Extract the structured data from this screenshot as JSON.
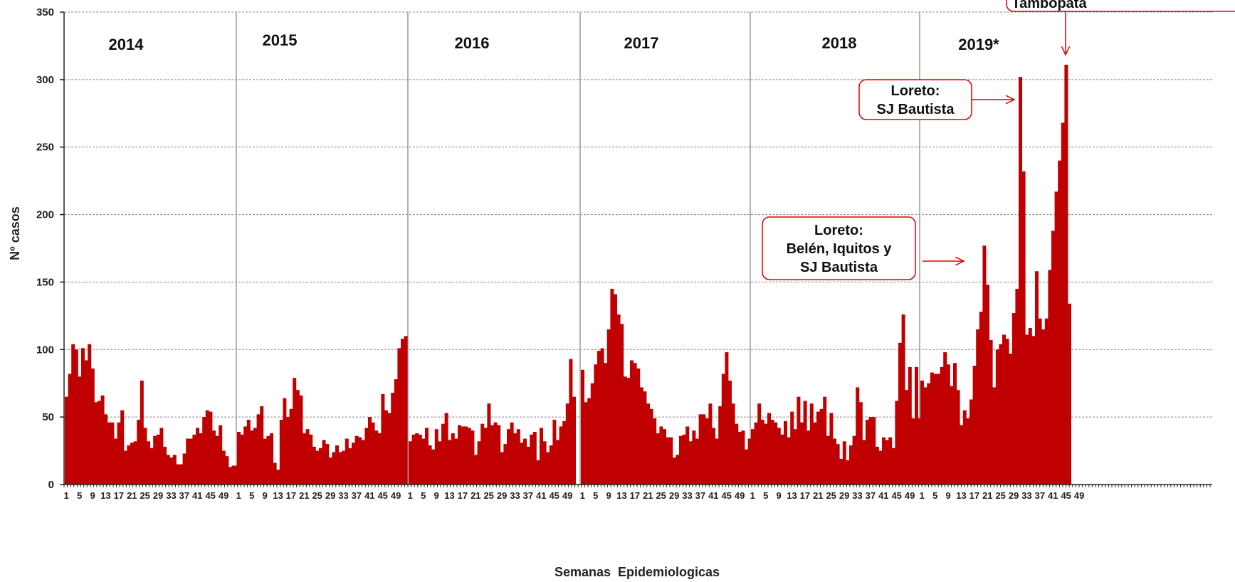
{
  "chart_data": {
    "type": "bar",
    "xlabel": "Semanas  Epidemiologicas",
    "ylabel": "Nº casos",
    "ylim": [
      0,
      350
    ],
    "yticks": [
      0,
      50,
      100,
      150,
      200,
      250,
      300,
      350
    ],
    "grid": "horizontal dashed",
    "bar_color": "#c00000",
    "x_tick_labels": [
      "1",
      "5",
      "9",
      "13",
      "17",
      "21",
      "25",
      "29",
      "33",
      "37",
      "41",
      "45",
      "49"
    ],
    "years": [
      {
        "label": "2014",
        "values": [
          65,
          82,
          104,
          100,
          80,
          101,
          92,
          104,
          86,
          61,
          62,
          66,
          52,
          46,
          46,
          34,
          46,
          55,
          25,
          29,
          31,
          32,
          48,
          77,
          42,
          32,
          27,
          36,
          37,
          42,
          28,
          22,
          20,
          22,
          15,
          15,
          23,
          34,
          34,
          37,
          42,
          38,
          50,
          55,
          54,
          40,
          36,
          44,
          25,
          21,
          13,
          14,
          14
        ]
      },
      {
        "label": "2015",
        "values": [
          39,
          37,
          43,
          48,
          40,
          42,
          52,
          58,
          34,
          36,
          38,
          16,
          11,
          48,
          64,
          50,
          56,
          79,
          70,
          66,
          38,
          41,
          37,
          28,
          25,
          27,
          33,
          30,
          20,
          24,
          29,
          24,
          25,
          34,
          27,
          31,
          36,
          35,
          33,
          42,
          50,
          46,
          40,
          38,
          67,
          55,
          53,
          68,
          78,
          101,
          108,
          110
        ]
      },
      {
        "label": "2016",
        "values": [
          32,
          37,
          38,
          37,
          34,
          42,
          29,
          26,
          41,
          32,
          45,
          53,
          33,
          38,
          34,
          44,
          43,
          43,
          42,
          40,
          22,
          32,
          45,
          42,
          60,
          44,
          46,
          44,
          24,
          30,
          41,
          46,
          38,
          41,
          31,
          34,
          28,
          37,
          39,
          18,
          42,
          32,
          24,
          29,
          48,
          33,
          43,
          47,
          60,
          93,
          65
        ]
      },
      {
        "label": "2017",
        "values": [
          85,
          61,
          64,
          75,
          89,
          99,
          101,
          90,
          115,
          145,
          141,
          126,
          119,
          80,
          79,
          92,
          90,
          86,
          72,
          69,
          60,
          56,
          49,
          38,
          43,
          41,
          35,
          35,
          20,
          22,
          36,
          37,
          43,
          32,
          40,
          34,
          52,
          52,
          49,
          60,
          42,
          34,
          58,
          82,
          98,
          77,
          60,
          45,
          39,
          40,
          26,
          34
        ]
      },
      {
        "label": "2018",
        "values": [
          41,
          46,
          60,
          48,
          45,
          53,
          48,
          46,
          42,
          37,
          47,
          35,
          54,
          41,
          65,
          46,
          62,
          40,
          60,
          46,
          54,
          56,
          65,
          36,
          53,
          34,
          30,
          19,
          32,
          18,
          29,
          36,
          72,
          61,
          33,
          48,
          50,
          50,
          28,
          25,
          35,
          33,
          35,
          27,
          62,
          105,
          126,
          70,
          87,
          49,
          87,
          49,
          41,
          41,
          51
        ]
      },
      {
        "label": "2019*",
        "values": [
          77,
          72,
          75,
          83,
          82,
          82,
          87,
          98,
          89,
          73,
          90,
          70,
          44,
          55,
          49,
          63,
          88,
          115,
          128,
          177,
          148,
          107,
          72,
          100,
          104,
          111,
          108,
          97,
          127,
          145,
          302,
          232,
          111,
          116,
          110,
          158,
          123,
          115,
          123,
          159,
          188,
          217,
          240,
          268,
          311,
          134
        ]
      }
    ],
    "year_labels": [
      "2014",
      "2015",
      "2016",
      "2017",
      "2018",
      "2019*"
    ],
    "annotations": [
      {
        "lines": [
          "Loreto:",
          "SJ Bautista"
        ],
        "target_year": "2019*",
        "target_week": 31
      },
      {
        "lines": [
          "Loreto:",
          "Belén, Iquitos y",
          "SJ Bautista"
        ],
        "target_year": "2019*",
        "target_week": 20
      },
      {
        "lines": [
          "Tambopata"
        ],
        "target_year": "2019*",
        "target_week": 45
      }
    ]
  }
}
